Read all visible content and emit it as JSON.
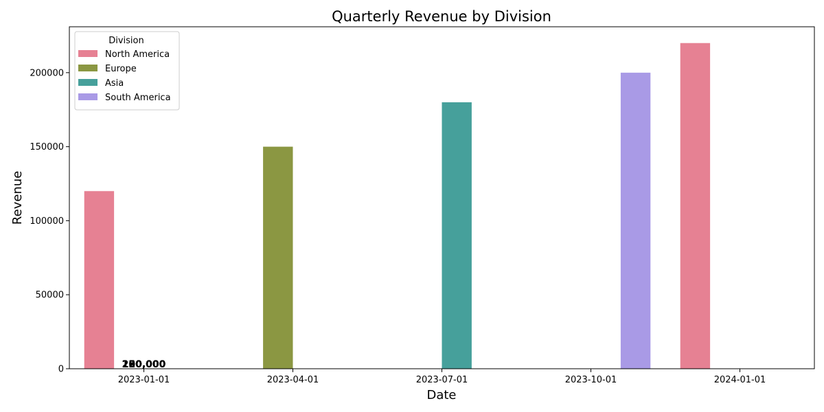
{
  "chart_data": {
    "type": "bar",
    "title": "Quarterly Revenue by Division",
    "xlabel": "Date",
    "ylabel": "Revenue",
    "categories": [
      "2023-01-01",
      "2023-04-01",
      "2023-07-01",
      "2023-10-01",
      "2024-01-01"
    ],
    "yticks": [
      0,
      50000,
      100000,
      150000,
      200000
    ],
    "ylim": [
      0,
      231000
    ],
    "grid": false,
    "legend": {
      "title": "Division",
      "placement": "top-left"
    },
    "series": [
      {
        "name": "North America",
        "color": "#e68193",
        "values": [
          120000,
          null,
          null,
          null,
          220000
        ]
      },
      {
        "name": "Europe",
        "color": "#8b9742",
        "values": [
          null,
          150000,
          null,
          null,
          null
        ]
      },
      {
        "name": "Asia",
        "color": "#46a09b",
        "values": [
          null,
          null,
          180000,
          null,
          null
        ]
      },
      {
        "name": "South America",
        "color": "#a99ae6",
        "values": [
          null,
          null,
          null,
          200000,
          null
        ]
      }
    ],
    "overlapping_value_labels": {
      "category": "2023-01-01",
      "labels": [
        "120,000",
        "150,000",
        "180,000",
        "200,000",
        "220,000"
      ]
    }
  }
}
